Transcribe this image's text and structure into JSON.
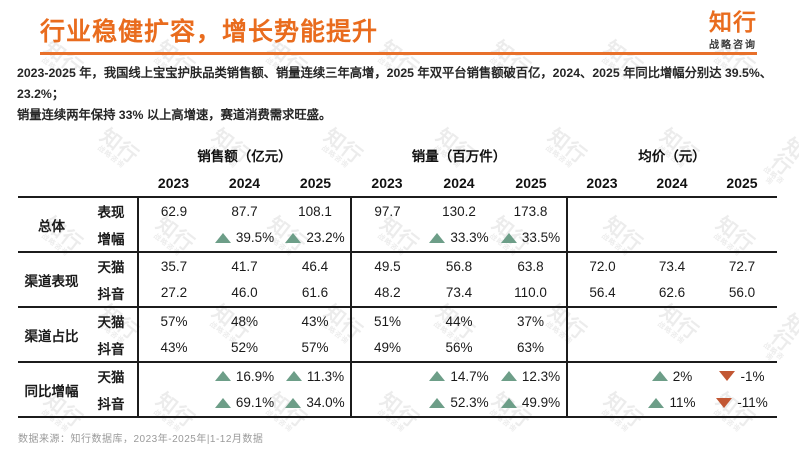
{
  "header": {
    "title": "行业稳健扩容，增长势能提升",
    "logo": {
      "name": "知行",
      "tagline": "战略咨询"
    }
  },
  "intro": {
    "line1": "2023-2025 年，我国线上宝宝护肤品类销售额、销量连续三年高增，2025 年双平台销售额破百亿，2024、2025 年同比增幅分别达 39.5%、23.2%；",
    "line2": "销量连续两年保持 33% 以上高增速，赛道消费需求旺盛。"
  },
  "watermark": {
    "text": "知行",
    "sub": "战略咨询"
  },
  "colors": {
    "accent": "#e8702a",
    "up": "#6d9e88",
    "down": "#c25733",
    "line": "#1c1c1c"
  },
  "table": {
    "panes": [
      {
        "title": "销售额（亿元）",
        "years": [
          "2023",
          "2024",
          "2025"
        ]
      },
      {
        "title": "销量（百万件）",
        "years": [
          "2023",
          "2024",
          "2025"
        ]
      },
      {
        "title": "均价（元）",
        "years": [
          "2023",
          "2024",
          "2025"
        ]
      }
    ],
    "groups": [
      {
        "label": "总体",
        "rows": [
          {
            "sub": "表现",
            "cells": [
              {
                "v": "62.9"
              },
              {
                "v": "87.7"
              },
              {
                "v": "108.1"
              },
              {
                "v": "97.7"
              },
              {
                "v": "130.2"
              },
              {
                "v": "173.8"
              },
              {},
              {},
              {}
            ]
          },
          {
            "sub": "增幅",
            "cells": [
              {},
              {
                "t": "up",
                "v": "39.5%"
              },
              {
                "t": "up",
                "v": "23.2%"
              },
              {},
              {
                "t": "up",
                "v": "33.3%"
              },
              {
                "t": "up",
                "v": "33.5%"
              },
              {},
              {},
              {}
            ]
          }
        ]
      },
      {
        "label": "渠道表现",
        "rows": [
          {
            "sub": "天猫",
            "cells": [
              {
                "v": "35.7"
              },
              {
                "v": "41.7"
              },
              {
                "v": "46.4"
              },
              {
                "v": "49.5"
              },
              {
                "v": "56.8"
              },
              {
                "v": "63.8"
              },
              {
                "v": "72.0"
              },
              {
                "v": "73.4"
              },
              {
                "v": "72.7"
              }
            ]
          },
          {
            "sub": "抖音",
            "cells": [
              {
                "v": "27.2"
              },
              {
                "v": "46.0"
              },
              {
                "v": "61.6"
              },
              {
                "v": "48.2"
              },
              {
                "v": "73.4"
              },
              {
                "v": "110.0"
              },
              {
                "v": "56.4"
              },
              {
                "v": "62.6"
              },
              {
                "v": "56.0"
              }
            ]
          }
        ]
      },
      {
        "label": "渠道占比",
        "rows": [
          {
            "sub": "天猫",
            "cells": [
              {
                "v": "57%"
              },
              {
                "v": "48%"
              },
              {
                "v": "43%"
              },
              {
                "v": "51%"
              },
              {
                "v": "44%"
              },
              {
                "v": "37%"
              },
              {},
              {},
              {}
            ]
          },
          {
            "sub": "抖音",
            "cells": [
              {
                "v": "43%"
              },
              {
                "v": "52%"
              },
              {
                "v": "57%"
              },
              {
                "v": "49%"
              },
              {
                "v": "56%"
              },
              {
                "v": "63%"
              },
              {},
              {},
              {}
            ]
          }
        ]
      },
      {
        "label": "同比增幅",
        "rows": [
          {
            "sub": "天猫",
            "cells": [
              {},
              {
                "t": "up",
                "v": "16.9%"
              },
              {
                "t": "up",
                "v": "11.3%"
              },
              {},
              {
                "t": "up",
                "v": "14.7%"
              },
              {
                "t": "up",
                "v": "12.3%"
              },
              {},
              {
                "t": "up",
                "v": "2%"
              },
              {
                "t": "down",
                "v": "-1%"
              }
            ]
          },
          {
            "sub": "抖音",
            "cells": [
              {},
              {
                "t": "up",
                "v": "69.1%"
              },
              {
                "t": "up",
                "v": "34.0%"
              },
              {},
              {
                "t": "up",
                "v": "52.3%"
              },
              {
                "t": "up",
                "v": "49.9%"
              },
              {},
              {
                "t": "up",
                "v": "11%"
              },
              {
                "t": "down",
                "v": "-11%"
              }
            ]
          }
        ]
      }
    ]
  },
  "footer": {
    "source": "数据来源：知行数据库，2023年-2025年|1-12月数据"
  }
}
